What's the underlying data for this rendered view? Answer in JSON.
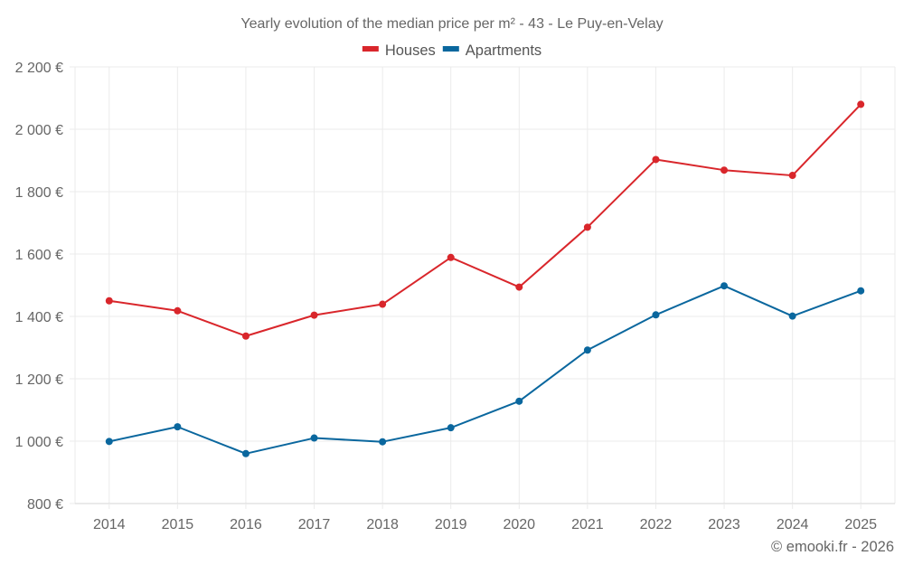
{
  "chart_data": {
    "type": "line",
    "title": "Yearly evolution of the median price per m² - 43 - Le Puy-en-Velay",
    "xlabel": "",
    "ylabel": "",
    "categories": [
      "2014",
      "2015",
      "2016",
      "2017",
      "2018",
      "2019",
      "2020",
      "2021",
      "2022",
      "2023",
      "2024",
      "2025"
    ],
    "series": [
      {
        "name": "Houses",
        "color": "#d9262b",
        "values": [
          1450,
          1418,
          1337,
          1404,
          1439,
          1589,
          1494,
          1686,
          1903,
          1869,
          1852,
          2080
        ]
      },
      {
        "name": "Apartments",
        "color": "#0a679e",
        "values": [
          999,
          1046,
          960,
          1010,
          998,
          1043,
          1128,
          1292,
          1405,
          1498,
          1401,
          1482
        ]
      }
    ],
    "ylim": [
      800,
      2200
    ],
    "yticks": [
      800,
      1000,
      1200,
      1400,
      1600,
      1800,
      2000,
      2200
    ],
    "ytick_labels": [
      "800 €",
      "1 000 €",
      "1 200 €",
      "1 400 €",
      "1 600 €",
      "1 800 €",
      "2 000 €",
      "2 200 €"
    ],
    "grid": true,
    "legend_position": "top-center"
  },
  "credit": "© emooki.fr - 2026"
}
